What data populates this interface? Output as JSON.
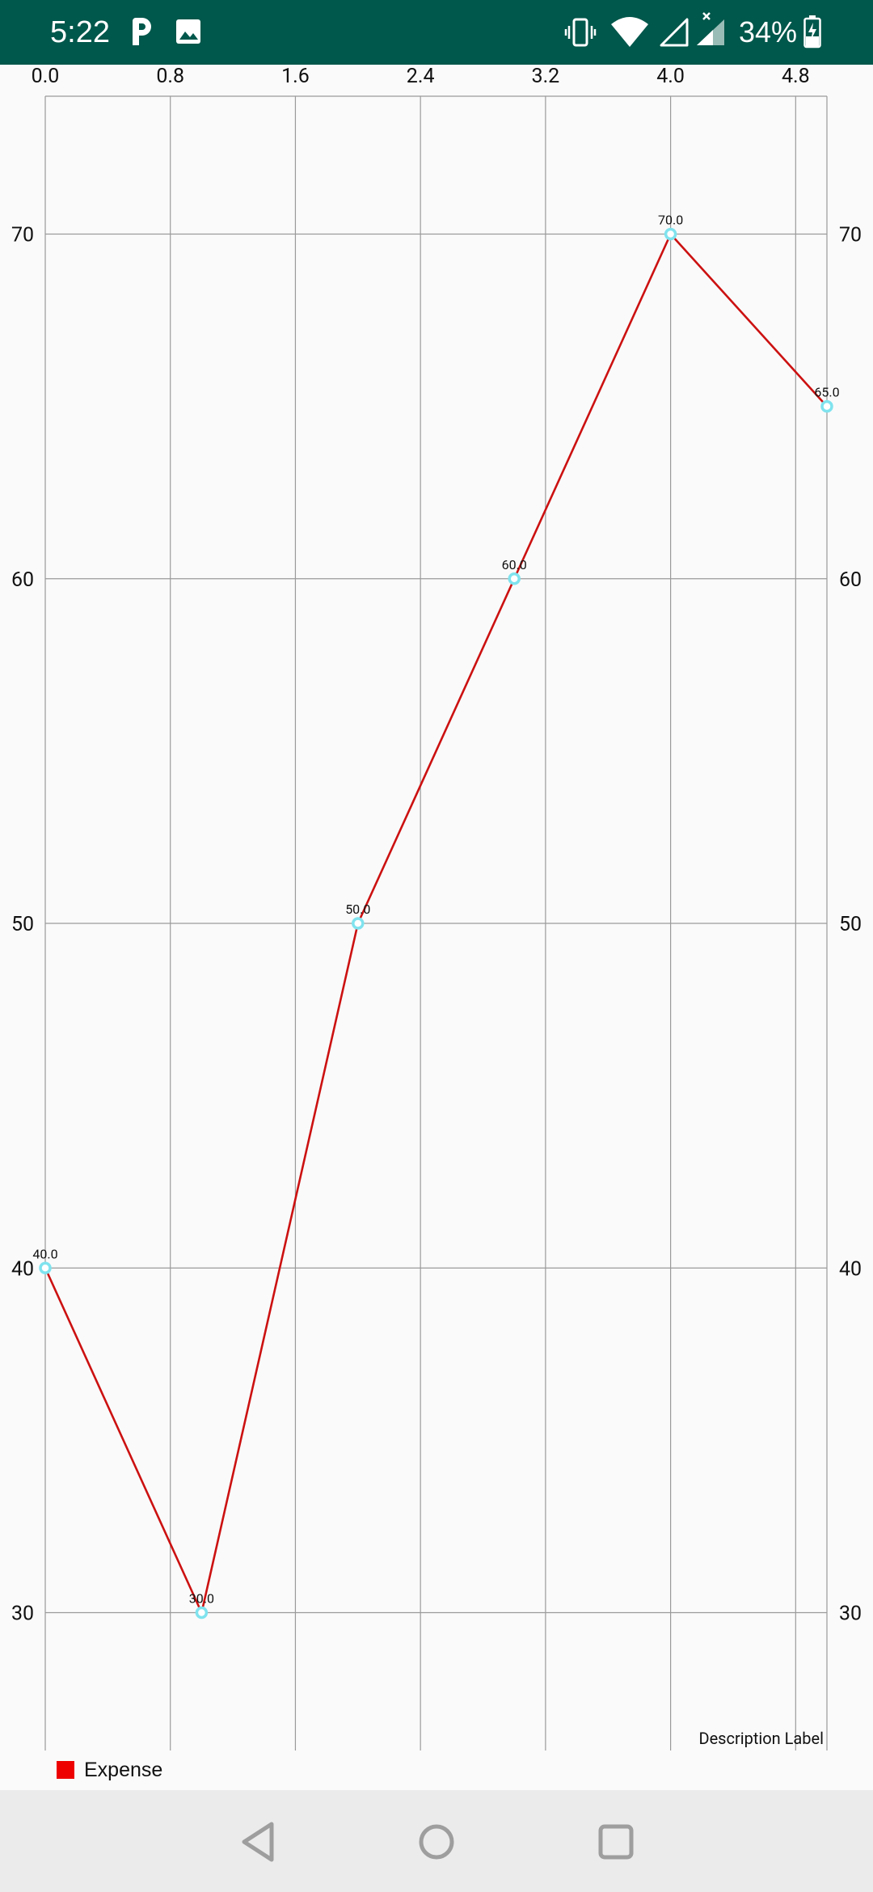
{
  "status_bar": {
    "time": "5:22",
    "battery_percent": "34%",
    "background_color": "#00574b",
    "left_icons": [
      "parking-icon",
      "image-icon"
    ],
    "right_icons": [
      "vibrate-icon",
      "wifi-icon",
      "signal-empty-icon",
      "signal-icon",
      "battery-charging-icon"
    ]
  },
  "chart_data": {
    "type": "line",
    "description_label": "Description Label",
    "x": [
      0,
      1,
      2,
      3,
      4,
      5
    ],
    "series": [
      {
        "name": "Expense",
        "color": "#cc1111",
        "legend_color": "#ee0000",
        "point_color": "#7fe3ee",
        "values": [
          40,
          30,
          50,
          60,
          70,
          65
        ],
        "value_labels": [
          "40.0",
          "30.0",
          "50.0",
          "60.0",
          "70.0",
          "65.0"
        ]
      }
    ],
    "x_axis": {
      "position": "top",
      "range": [
        0,
        5
      ],
      "ticks": [
        0,
        0.8,
        1.6,
        2.4,
        3.2,
        4.0,
        4.8
      ],
      "tick_labels": [
        "0.0",
        "0.8",
        "1.6",
        "2.4",
        "3.2",
        "4.0",
        "4.8"
      ]
    },
    "y_axis_left": {
      "range": [
        26,
        74
      ],
      "ticks": [
        30,
        40,
        50,
        60,
        70
      ],
      "tick_labels": [
        "30",
        "40",
        "50",
        "60",
        "70"
      ]
    },
    "y_axis_right": {
      "range": [
        26,
        74
      ],
      "ticks": [
        30,
        40,
        50,
        60,
        70
      ],
      "tick_labels": [
        "30",
        "40",
        "50",
        "60",
        "70"
      ]
    },
    "grid": true,
    "legend_position": "bottom-left"
  },
  "nav_bar": {
    "buttons": [
      "back-icon",
      "home-icon",
      "recents-icon"
    ]
  }
}
